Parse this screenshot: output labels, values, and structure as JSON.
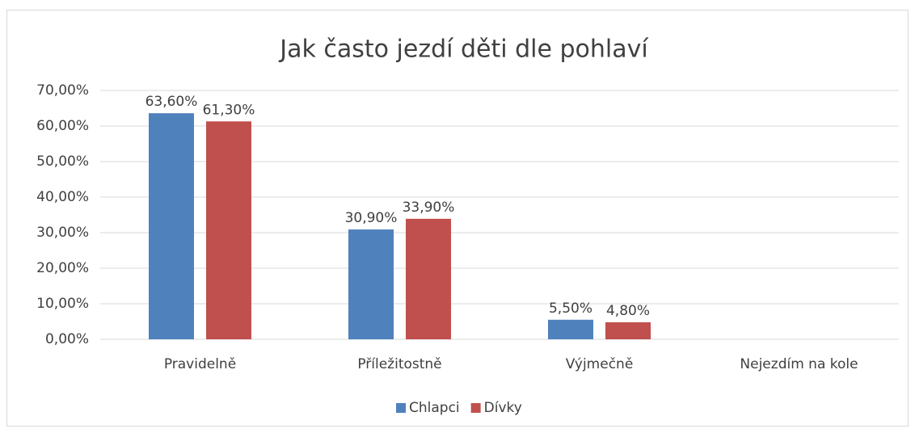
{
  "chart_data": {
    "type": "bar",
    "title": "Jak často jezdí děti dle pohlaví",
    "categories": [
      "Pravidelně",
      "Příležitostně",
      "Výjmečně",
      "Nejezdím na kole"
    ],
    "series": [
      {
        "name": "Chlapci",
        "color": "#4f81bd",
        "values": [
          63.6,
          30.9,
          5.5,
          null
        ],
        "value_labels": [
          "63,60%",
          "30,90%",
          "5,50%",
          null
        ]
      },
      {
        "name": "Dívky",
        "color": "#c0504d",
        "values": [
          61.3,
          33.9,
          4.8,
          null
        ],
        "value_labels": [
          "61,30%",
          "33,90%",
          "4,80%",
          null
        ]
      }
    ],
    "ylim": [
      0,
      70
    ],
    "yticks": [
      {
        "value": 0,
        "label": "0,00%"
      },
      {
        "value": 10,
        "label": "10,00%"
      },
      {
        "value": 20,
        "label": "20,00%"
      },
      {
        "value": 30,
        "label": "30,00%"
      },
      {
        "value": 40,
        "label": "40,00%"
      },
      {
        "value": 50,
        "label": "50,00%"
      },
      {
        "value": 60,
        "label": "60,00%"
      },
      {
        "value": 70,
        "label": "70,00%"
      }
    ],
    "grid": true,
    "legend": "bottom"
  }
}
